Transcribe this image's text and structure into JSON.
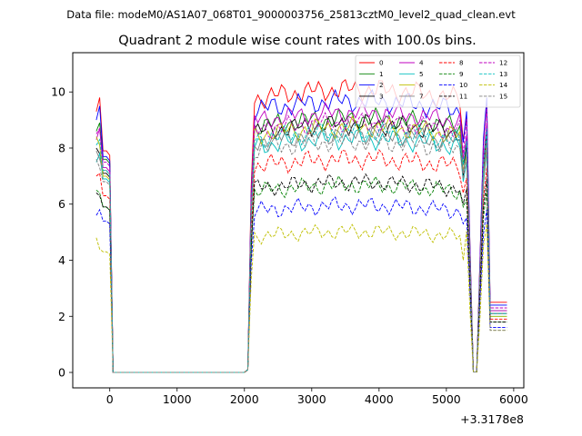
{
  "figure": {
    "suptitle": "Data file: modeM0/AS1A07_068T01_9000003756_25813cztM0_level2_quad_clean.evt",
    "x_offset_label": "+3.3178e8"
  },
  "chart_data": {
    "type": "line",
    "title": "Quadrant 2 module wise count rates with 100.0s bins.",
    "xlabel": "",
    "ylabel": "",
    "xlim": [
      -550,
      6150
    ],
    "ylim": [
      -0.55,
      11.4
    ],
    "x_ticks": [
      0,
      1000,
      2000,
      3000,
      4000,
      5000,
      6000
    ],
    "y_ticks": [
      0,
      2,
      4,
      6,
      8,
      10
    ],
    "x_tick_labels": [
      "0",
      "1000",
      "2000",
      "3000",
      "4000",
      "5000",
      "6000"
    ],
    "y_tick_labels": [
      "0",
      "2",
      "4",
      "6",
      "8",
      "10"
    ],
    "grid": false,
    "legend_position": "top-right",
    "legend_columns": 4,
    "x": [
      -200,
      -150,
      -100,
      -50,
      0,
      50,
      100,
      150,
      200,
      250,
      300,
      350,
      400,
      450,
      500,
      550,
      600,
      650,
      700,
      750,
      800,
      850,
      900,
      950,
      1000,
      1050,
      1100,
      1150,
      1200,
      1250,
      1300,
      1350,
      1400,
      1450,
      1500,
      1550,
      1600,
      1650,
      1700,
      1750,
      1800,
      1850,
      1900,
      1950,
      2000,
      2050,
      2100,
      2150,
      2200,
      2250,
      2300,
      2350,
      2400,
      2450,
      2500,
      2550,
      2600,
      2650,
      2700,
      2750,
      2800,
      2850,
      2900,
      2950,
      3000,
      3050,
      3100,
      3150,
      3200,
      3250,
      3300,
      3350,
      3400,
      3450,
      3500,
      3550,
      3600,
      3650,
      3700,
      3750,
      3800,
      3850,
      3900,
      3950,
      4000,
      4050,
      4100,
      4150,
      4200,
      4250,
      4300,
      4350,
      4400,
      4450,
      4500,
      4550,
      4600,
      4650,
      4700,
      4750,
      4800,
      4850,
      4900,
      4950,
      5000,
      5050,
      5100,
      5150,
      5200,
      5250,
      5300,
      5350,
      5400,
      5450,
      5500,
      5550,
      5600,
      5650,
      5700,
      5750,
      5800,
      5850,
      5900
    ],
    "series": [
      {
        "name": "0",
        "color": "#ff0000",
        "dash": "solid",
        "levels": [
          9.3,
          9.8,
          7.9
        ],
        "level": 9.75,
        "end": [
          8.3,
          9.6,
          2.5
        ],
        "amp": 0.22
      },
      {
        "name": "1",
        "color": "#008000",
        "dash": "solid",
        "levels": [
          8.6,
          8.9,
          7.6
        ],
        "level": 8.75,
        "end": [
          7.4,
          8.4,
          2.2
        ],
        "amp": 0.2
      },
      {
        "name": "2",
        "color": "#0000ff",
        "dash": "solid",
        "levels": [
          9.0,
          9.5,
          7.7
        ],
        "level": 9.35,
        "end": [
          8.2,
          9.8,
          2.4
        ],
        "amp": 0.22
      },
      {
        "name": "3",
        "color": "#000000",
        "dash": "solid",
        "levels": [
          8.0,
          7.8,
          7.1
        ],
        "level": 8.55,
        "end": [
          7.0,
          8.6,
          2.1
        ],
        "amp": 0.2
      },
      {
        "name": "4",
        "color": "#bf00bf",
        "dash": "solid",
        "levels": [
          8.3,
          8.7,
          7.3
        ],
        "level": 8.95,
        "end": [
          7.6,
          8.9,
          2.2
        ],
        "amp": 0.2
      },
      {
        "name": "5",
        "color": "#00bfbf",
        "dash": "solid",
        "levels": [
          7.5,
          7.8,
          6.9
        ],
        "level": 8.05,
        "end": [
          6.8,
          7.9,
          2.0
        ],
        "amp": 0.2
      },
      {
        "name": "6",
        "color": "#bfbf00",
        "dash": "solid",
        "levels": [
          8.4,
          8.1,
          7.0
        ],
        "level": 8.45,
        "end": [
          7.2,
          8.1,
          2.0
        ],
        "amp": 0.2
      },
      {
        "name": "7",
        "color": "#808080",
        "dash": "solid",
        "levels": [
          7.9,
          7.6,
          7.2
        ],
        "level": 8.25,
        "end": [
          7.1,
          8.3,
          2.1
        ],
        "amp": 0.22
      },
      {
        "name": "8",
        "color": "#ff0000",
        "dash": "dashed",
        "levels": [
          7.0,
          7.1,
          6.3
        ],
        "level": 7.35,
        "end": [
          6.4,
          7.3,
          1.9
        ],
        "amp": 0.2
      },
      {
        "name": "9",
        "color": "#008000",
        "dash": "dashed",
        "levels": [
          6.5,
          6.4,
          5.9
        ],
        "level": 6.45,
        "end": [
          5.9,
          6.5,
          1.8
        ],
        "amp": 0.17
      },
      {
        "name": "10",
        "color": "#0000ff",
        "dash": "dashed",
        "levels": [
          5.6,
          5.8,
          5.4
        ],
        "level": 5.75,
        "end": [
          5.3,
          5.8,
          1.6
        ],
        "amp": 0.17
      },
      {
        "name": "11",
        "color": "#000000",
        "dash": "dashed",
        "levels": [
          6.4,
          6.3,
          5.9
        ],
        "level": 6.55,
        "end": [
          6.0,
          6.9,
          1.8
        ],
        "amp": 0.17
      },
      {
        "name": "12",
        "color": "#bf00bf",
        "dash": "dashed",
        "levels": [
          8.5,
          8.7,
          7.5
        ],
        "level": 8.6,
        "end": [
          7.8,
          9.5,
          2.3
        ],
        "amp": 0.2
      },
      {
        "name": "13",
        "color": "#00bfbf",
        "dash": "dashed",
        "levels": [
          8.1,
          8.3,
          7.2
        ],
        "level": 8.3,
        "end": [
          7.4,
          8.7,
          2.1
        ],
        "amp": 0.2
      },
      {
        "name": "14",
        "color": "#bfbf00",
        "dash": "dashed",
        "levels": [
          4.8,
          4.4,
          4.3
        ],
        "level": 4.85,
        "end": [
          4.0,
          5.3,
          1.5
        ],
        "amp": 0.15
      },
      {
        "name": "15",
        "color": "#808080",
        "dash": "dashed",
        "levels": [
          7.6,
          7.3,
          6.8
        ],
        "level": 7.95,
        "end": [
          6.9,
          8.0,
          1.5
        ],
        "amp": 0.2
      }
    ]
  }
}
